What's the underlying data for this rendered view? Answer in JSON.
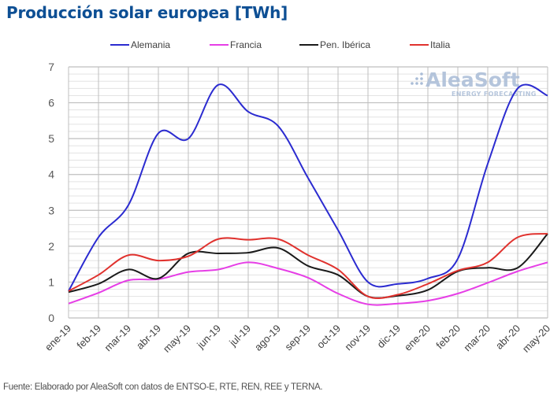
{
  "chart_data": {
    "type": "line",
    "title": "Producción solar europea [TWh]",
    "xlabel": "",
    "ylabel": "",
    "ylim": [
      0,
      7
    ],
    "yticks": [
      0,
      1,
      2,
      3,
      4,
      5,
      6,
      7
    ],
    "grid": true,
    "minor_grid_step": 0.2,
    "legend_position": "top",
    "categories": [
      "ene-19",
      "feb-19",
      "mar-19",
      "abr-19",
      "may-19",
      "jun-19",
      "jul-19",
      "ago-19",
      "sep-19",
      "oct-19",
      "nov-19",
      "dic-19",
      "ene-20",
      "feb-20",
      "mar-20",
      "abr-20",
      "may-20"
    ],
    "series": [
      {
        "name": "Alemania",
        "color": "#2b2bd0",
        "values": [
          0.75,
          2.25,
          3.15,
          5.15,
          5.0,
          6.5,
          5.75,
          5.35,
          3.9,
          2.45,
          1.0,
          0.95,
          1.1,
          1.65,
          4.3,
          6.4,
          6.2
        ]
      },
      {
        "name": "Francia",
        "color": "#e63ee6",
        "values": [
          0.4,
          0.7,
          1.05,
          1.08,
          1.28,
          1.35,
          1.55,
          1.38,
          1.12,
          0.68,
          0.38,
          0.4,
          0.48,
          0.68,
          0.98,
          1.3,
          1.55
        ]
      },
      {
        "name": "Pen. Ibérica",
        "color": "#1a1a1a",
        "values": [
          0.72,
          0.95,
          1.35,
          1.1,
          1.8,
          1.8,
          1.82,
          1.95,
          1.45,
          1.2,
          0.6,
          0.62,
          0.78,
          1.3,
          1.4,
          1.4,
          2.35
        ]
      },
      {
        "name": "Italia",
        "color": "#e0322e",
        "values": [
          0.75,
          1.2,
          1.75,
          1.6,
          1.72,
          2.2,
          2.18,
          2.2,
          1.75,
          1.35,
          0.6,
          0.65,
          0.95,
          1.32,
          1.55,
          2.25,
          2.35
        ]
      }
    ],
    "watermark": {
      "name": "AleaSoft",
      "tagline": "ENERGY FORECASTING"
    },
    "source": "Fuente: Elaborado por AleaSoft con datos de ENTSO-E, RTE, REN, REE y TERNA."
  },
  "colors": {
    "title": "#0d4f94",
    "grid_major": "#bfbfbf",
    "grid_minor": "#e3e3e3"
  }
}
